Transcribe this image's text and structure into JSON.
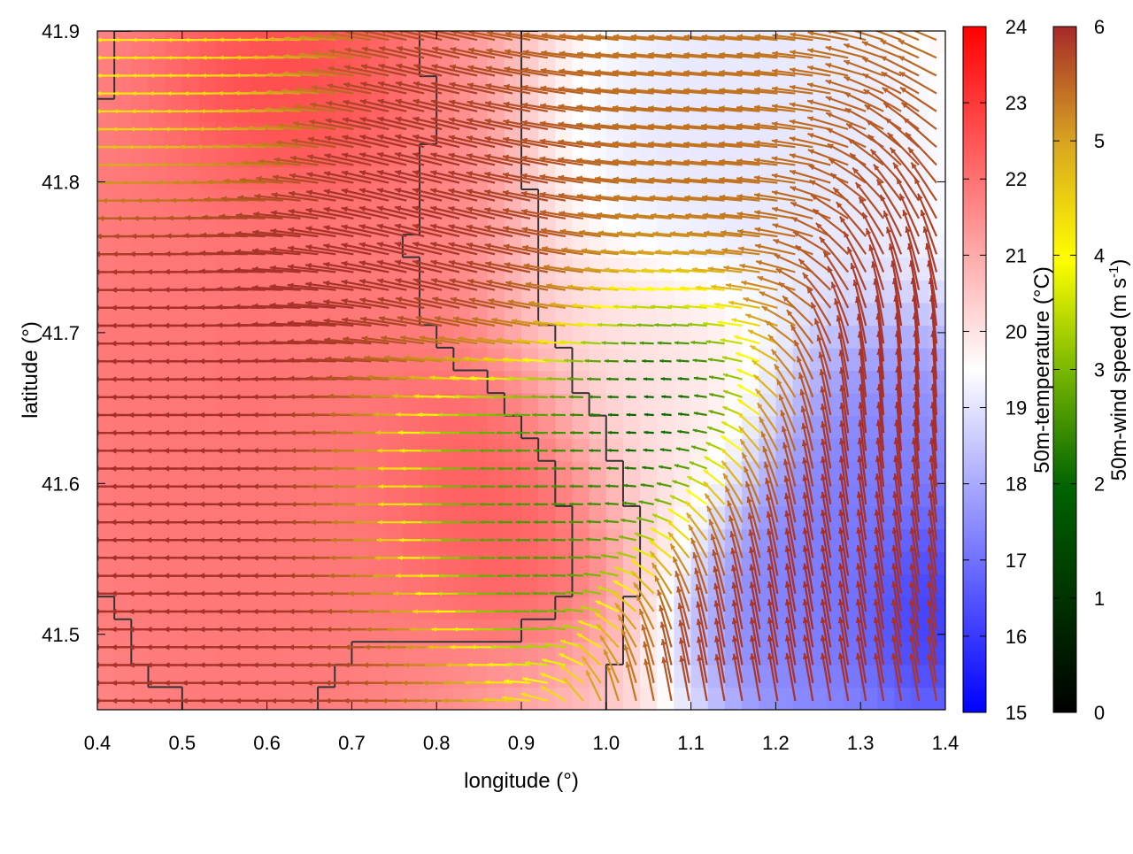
{
  "chart_data": {
    "type": "heatmap",
    "overlay": "wind-vector-field",
    "xlabel": "longitude (°)",
    "ylabel": "latitude (°)",
    "xlim": [
      0.4,
      1.4
    ],
    "ylim": [
      41.45,
      41.9
    ],
    "x_ticks": [
      "0.4",
      "0.5",
      "0.6",
      "0.7",
      "0.8",
      "0.9",
      "1.0",
      "1.1",
      "1.2",
      "1.3",
      "1.4"
    ],
    "y_ticks": [
      "41.5",
      "41.6",
      "41.7",
      "41.8",
      "41.9"
    ],
    "grid": false,
    "temperature_colorbar": {
      "label": "50m-temperature (°C)",
      "range": [
        15,
        24
      ],
      "ticks": [
        "15",
        "16",
        "17",
        "18",
        "19",
        "20",
        "21",
        "22",
        "23",
        "24"
      ],
      "colors": [
        "#0000ff",
        "#ffffff",
        "#ff0000"
      ]
    },
    "wind_colorbar": {
      "label_main": "50m-wind speed (m s",
      "label_sup": "-1",
      "label_end": ")",
      "range": [
        0,
        6
      ],
      "ticks": [
        "0",
        "1",
        "2",
        "3",
        "4",
        "5",
        "6"
      ],
      "colors": [
        "#000000",
        "#006400",
        "#7ab800",
        "#ffff00",
        "#d9a520",
        "#c07020",
        "#a52a2a"
      ]
    },
    "temperature_regions": [
      {
        "lon": [
          0.4,
          0.75
        ],
        "lat": [
          41.45,
          41.9
        ],
        "value": 22
      },
      {
        "lon": [
          0.55,
          0.68
        ],
        "lat": [
          41.82,
          41.9
        ],
        "value": 23
      },
      {
        "lon": [
          0.8,
          0.95
        ],
        "lat": [
          41.55,
          41.65
        ],
        "value": 22.5
      },
      {
        "lon": [
          0.95,
          1.15
        ],
        "lat": [
          41.6,
          41.72
        ],
        "value": 20
      },
      {
        "lon": [
          1.05,
          1.3
        ],
        "lat": [
          41.75,
          41.9
        ],
        "value": 19
      },
      {
        "lon": [
          1.2,
          1.4
        ],
        "lat": [
          41.45,
          41.65
        ],
        "value": 17
      },
      {
        "lon": [
          1.35,
          1.4
        ],
        "lat": [
          41.48,
          41.55
        ],
        "value": 15.5
      }
    ],
    "wind_regions": [
      {
        "lon": [
          0.4,
          0.7
        ],
        "lat": [
          41.45,
          41.78
        ],
        "speed": 6,
        "dir_deg": 180
      },
      {
        "lon": [
          0.7,
          0.95
        ],
        "lat": [
          41.72,
          41.85
        ],
        "speed": 6,
        "dir_deg": 165
      },
      {
        "lon": [
          0.95,
          1.35
        ],
        "lat": [
          41.72,
          41.88
        ],
        "speed": 5,
        "dir_deg": 175
      },
      {
        "lon": [
          0.8,
          1.0
        ],
        "lat": [
          41.55,
          41.65
        ],
        "speed": 1.5,
        "dir_deg": 180
      },
      {
        "lon": [
          1.02,
          1.15
        ],
        "lat": [
          41.6,
          41.72
        ],
        "speed": 0.3,
        "dir_deg": 180
      },
      {
        "lon": [
          1.15,
          1.4
        ],
        "lat": [
          41.45,
          41.65
        ],
        "speed": 6,
        "dir_deg": 100
      },
      {
        "lon": [
          0.4,
          0.6
        ],
        "lat": [
          41.82,
          41.9
        ],
        "speed": 3,
        "dir_deg": 180
      },
      {
        "lon": [
          1.3,
          1.4
        ],
        "lat": [
          41.6,
          41.8
        ],
        "speed": 6,
        "dir_deg": 90
      }
    ]
  }
}
